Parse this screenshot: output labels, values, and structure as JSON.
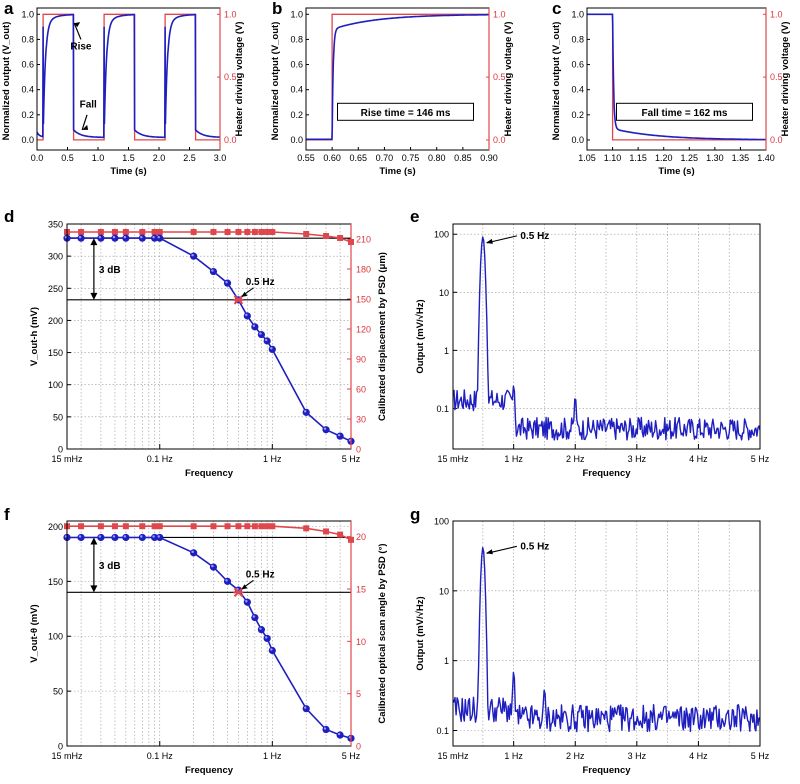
{
  "colors": {
    "blue": "#1f1fbf",
    "red": "#e0474c",
    "grid": "#9a9a9a",
    "black": "#000000"
  },
  "chart_data": [
    {
      "panel": "a",
      "type": "line",
      "xlabel": "Time (s)",
      "ylabel_left": "Normalized output (V_out)",
      "ylabel_right": "Heater driving voltage (V)",
      "xlim": [
        0,
        3
      ],
      "ylim": [
        -0.08,
        1.05
      ],
      "xticks": [
        "0.0",
        "0.5",
        "1.0",
        "1.5",
        "2.0",
        "2.5",
        "3.0"
      ],
      "yticks_left": [
        "0.0",
        "0.2",
        "0.4",
        "0.6",
        "0.8",
        "1.0"
      ],
      "yticks_right": [
        "0.0",
        "0.5",
        "1.0"
      ],
      "edges": [
        0.1,
        0.6,
        1.1,
        1.6,
        2.1,
        2.6
      ],
      "annotations": [
        "Rise",
        "Fall"
      ],
      "series": [
        {
          "name": "Normalized output",
          "color": "#1f1fbf",
          "rise_tau": 0.035,
          "fall_tau": 0.04
        },
        {
          "name": "Heater driving voltage",
          "color": "#e0474c",
          "low": 0,
          "high": 1
        }
      ]
    },
    {
      "panel": "b",
      "type": "line",
      "xlabel": "Time (s)",
      "ylabel_left": "Normalized output (V_out)",
      "ylabel_right": "Heater driving voltage (V)",
      "xlim": [
        0.55,
        0.9
      ],
      "ylim": [
        -0.08,
        1.05
      ],
      "xticks": [
        "0.55",
        "0.60",
        "0.65",
        "0.70",
        "0.75",
        "0.80",
        "0.85",
        "0.90"
      ],
      "yticks_left": [
        "0.0",
        "0.2",
        "0.4",
        "0.6",
        "0.8",
        "1.0"
      ],
      "yticks_right": [
        "0.0",
        "0.5",
        "1.0"
      ],
      "step_at": 0.6,
      "jump_to": 0.88,
      "annotation": "Rise time = 146 ms"
    },
    {
      "panel": "c",
      "type": "line",
      "xlabel": "Time (s)",
      "ylabel_left": "Normalized output (V_out)",
      "ylabel_right": "Heater driving voltage (V)",
      "xlim": [
        1.05,
        1.4
      ],
      "ylim": [
        -0.08,
        1.05
      ],
      "xticks": [
        "1.05",
        "1.10",
        "1.15",
        "1.20",
        "1.25",
        "1.30",
        "1.35",
        "1.40"
      ],
      "yticks_left": [
        "0.0",
        "0.2",
        "0.4",
        "0.6",
        "0.8",
        "1.0"
      ],
      "yticks_right": [
        "0.0",
        "0.5",
        "1.0"
      ],
      "step_at": 1.1,
      "drop_to": 0.09,
      "annotation": "Fall time = 162 ms"
    },
    {
      "panel": "d",
      "type": "line",
      "xscale": "log",
      "xlabel": "Frequency",
      "ylabel_left": "V_out-h (mV)",
      "ylabel_right": "Calibrated displacement by PSD (μm)",
      "xlim": [
        0.015,
        5
      ],
      "ylim": [
        0,
        350
      ],
      "ylim_right": [
        0,
        225
      ],
      "xticks": [
        {
          "v": 0.015,
          "label": "15 mHz"
        },
        {
          "v": 0.1,
          "label": "0.1 Hz"
        },
        {
          "v": 1,
          "label": "1 Hz"
        },
        {
          "v": 5,
          "label": "5 Hz"
        }
      ],
      "yticks_left": [
        0,
        50,
        100,
        150,
        200,
        250,
        300,
        350
      ],
      "yticks_right": [
        0,
        30,
        60,
        90,
        120,
        150,
        180,
        210
      ],
      "threshold": 232,
      "top_line": 328,
      "cutoff_label": "0.5 Hz",
      "db_label": "3 dB",
      "series": [
        {
          "name": "V_out-h",
          "color": "#1f1fbf",
          "x": [
            0.015,
            0.02,
            0.03,
            0.04,
            0.05,
            0.07,
            0.09,
            0.1,
            0.2,
            0.3,
            0.4,
            0.5,
            0.6,
            0.7,
            0.8,
            0.9,
            1.0,
            2.0,
            3.0,
            4.0,
            5.0
          ],
          "y": [
            328,
            328,
            328,
            328,
            328,
            328,
            328,
            328,
            300,
            276,
            258,
            232,
            207,
            190,
            178,
            168,
            155,
            57,
            30,
            20,
            12
          ]
        },
        {
          "name": "Calibrated displacement",
          "color": "#e0474c",
          "axis": "right",
          "x": [
            0.015,
            0.02,
            0.03,
            0.04,
            0.05,
            0.07,
            0.09,
            0.1,
            0.2,
            0.3,
            0.4,
            0.5,
            0.6,
            0.7,
            0.8,
            0.9,
            1.0,
            2.0,
            3.0,
            4.0,
            5.0
          ],
          "y": [
            217,
            217,
            217,
            217,
            217,
            217,
            217,
            217,
            217,
            217,
            217,
            217,
            217,
            217,
            217,
            217,
            217,
            215,
            213,
            211,
            207
          ]
        }
      ]
    },
    {
      "panel": "e",
      "type": "line",
      "yscale": "log",
      "xlabel": "Frequency",
      "ylabel": "Output (mV/√Hz)",
      "xlim": [
        0.015,
        5
      ],
      "ylim": [
        0.02,
        150
      ],
      "xticks": [
        {
          "v": 0.015,
          "label": "15 mHz"
        },
        {
          "v": 1,
          "label": "1 Hz"
        },
        {
          "v": 2,
          "label": "2 Hz"
        },
        {
          "v": 3,
          "label": "3 Hz"
        },
        {
          "v": 4,
          "label": "4 Hz"
        },
        {
          "v": 5,
          "label": "5 Hz"
        }
      ],
      "yticks": [
        {
          "v": 0.1,
          "label": "0.1"
        },
        {
          "v": 1,
          "label": "1"
        },
        {
          "v": 10,
          "label": "10"
        },
        {
          "v": 100,
          "label": "100"
        }
      ],
      "peak_label": "0.5 Hz",
      "peaks": [
        {
          "x": 0.5,
          "y": 90
        },
        {
          "x": 1.0,
          "y": 0.25
        },
        {
          "x": 2.0,
          "y": 0.16
        }
      ],
      "baseline": {
        "before_1hz": 0.14,
        "after_1hz": 0.045
      }
    },
    {
      "panel": "f",
      "type": "line",
      "xscale": "log",
      "xlabel": "Frequency",
      "ylabel_left": "V_out-θ (mV)",
      "ylabel_right": "Calibrated optical scan angle by PSD (°)",
      "xlim": [
        0.015,
        5
      ],
      "ylim": [
        0,
        205
      ],
      "ylim_right": [
        0,
        21.5
      ],
      "xticks": [
        {
          "v": 0.015,
          "label": "15 mHz"
        },
        {
          "v": 0.1,
          "label": "0.1 Hz"
        },
        {
          "v": 1,
          "label": "1 Hz"
        },
        {
          "v": 5,
          "label": "5 Hz"
        }
      ],
      "yticks_left": [
        0,
        50,
        100,
        150,
        200
      ],
      "yticks_right": [
        0,
        5,
        10,
        15,
        20
      ],
      "threshold": 140,
      "top_line": 190,
      "cutoff_label": "0.5 Hz",
      "db_label": "3 dB",
      "series": [
        {
          "name": "V_out-θ",
          "color": "#1f1fbf",
          "x": [
            0.015,
            0.02,
            0.03,
            0.04,
            0.05,
            0.07,
            0.09,
            0.1,
            0.2,
            0.3,
            0.4,
            0.5,
            0.6,
            0.7,
            0.8,
            0.9,
            1.0,
            2.0,
            3.0,
            4.0,
            5.0
          ],
          "y": [
            190,
            190,
            190,
            190,
            190,
            190,
            190,
            190,
            176,
            163,
            150,
            142,
            131,
            117,
            106,
            98,
            87,
            34,
            15,
            10,
            7
          ]
        },
        {
          "name": "Calibrated optical scan angle",
          "color": "#e0474c",
          "axis": "right",
          "x": [
            0.015,
            0.02,
            0.03,
            0.04,
            0.05,
            0.07,
            0.09,
            0.1,
            0.2,
            0.3,
            0.4,
            0.5,
            0.6,
            0.7,
            0.8,
            0.9,
            1.0,
            2.0,
            3.0,
            4.0,
            5.0
          ],
          "y": [
            21,
            21,
            21,
            21,
            21,
            21,
            21,
            21,
            21,
            21,
            21,
            21,
            21,
            21,
            21,
            21,
            21,
            20.8,
            20.5,
            20.2,
            19.7
          ]
        }
      ]
    },
    {
      "panel": "g",
      "type": "line",
      "yscale": "log",
      "xlabel": "Frequency",
      "ylabel": "Output (mV/√Hz)",
      "xlim": [
        0.015,
        5
      ],
      "ylim": [
        0.06,
        100
      ],
      "xticks": [
        {
          "v": 0.015,
          "label": "15 mHz"
        },
        {
          "v": 1,
          "label": "1 Hz"
        },
        {
          "v": 2,
          "label": "2 Hz"
        },
        {
          "v": 3,
          "label": "3 Hz"
        },
        {
          "v": 4,
          "label": "4 Hz"
        },
        {
          "v": 5,
          "label": "5 Hz"
        }
      ],
      "yticks": [
        {
          "v": 0.1,
          "label": "0.1"
        },
        {
          "v": 1,
          "label": "1"
        },
        {
          "v": 10,
          "label": "10"
        },
        {
          "v": 100,
          "label": "100"
        }
      ],
      "peak_label": "0.5 Hz",
      "peaks": [
        {
          "x": 0.5,
          "y": 42
        },
        {
          "x": 1.0,
          "y": 0.7
        },
        {
          "x": 1.5,
          "y": 0.4
        }
      ],
      "baseline": {
        "before_1hz": 0.2,
        "after_1hz": 0.15
      }
    }
  ]
}
